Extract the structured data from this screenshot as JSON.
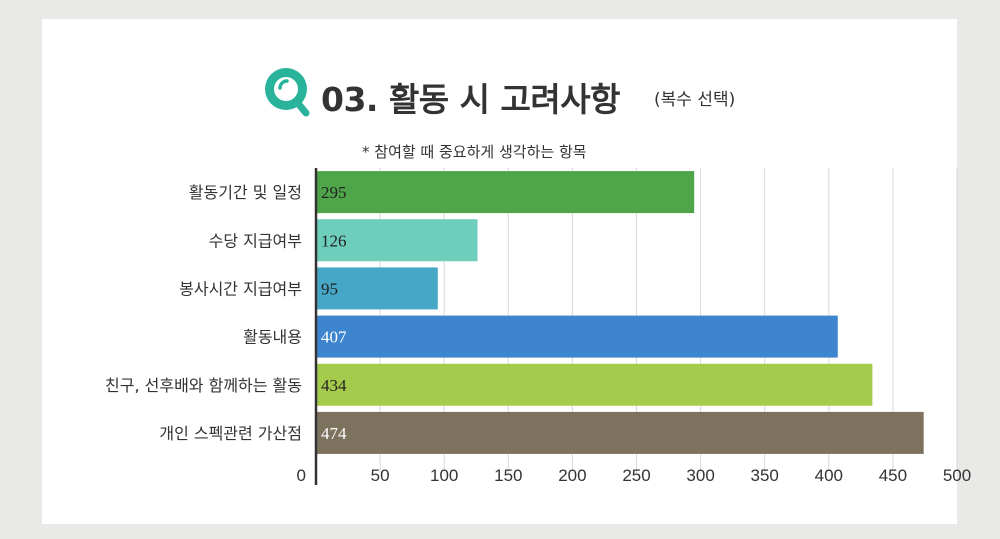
{
  "header": {
    "title": "03. 활동 시 고려사항",
    "title_note": "(복수 선택)",
    "subtitle": "* 참여할 때 중요하게 생각하는 항목"
  },
  "chart_data": {
    "type": "bar",
    "orientation": "horizontal",
    "categories": [
      "활동기간 및 일정",
      "수당 지급여부",
      "봉사시간 지급여부",
      "활동내용",
      "친구, 선후배와 함께하는 활동",
      "개인 스펙관련 가산점"
    ],
    "values": [
      295,
      126,
      95,
      407,
      434,
      474
    ],
    "colors": [
      "#4fa64a",
      "#6ccebb",
      "#47a7c6",
      "#3d86cf",
      "#a4cb4c",
      "#7d725e"
    ],
    "label_colors": [
      "#222222",
      "#222222",
      "#222222",
      "#ffffff",
      "#222222",
      "#ffffff"
    ],
    "xlim": [
      0,
      500
    ],
    "xticks": [
      0,
      50,
      100,
      150,
      200,
      250,
      300,
      350,
      400,
      450,
      500
    ],
    "grid": true
  }
}
